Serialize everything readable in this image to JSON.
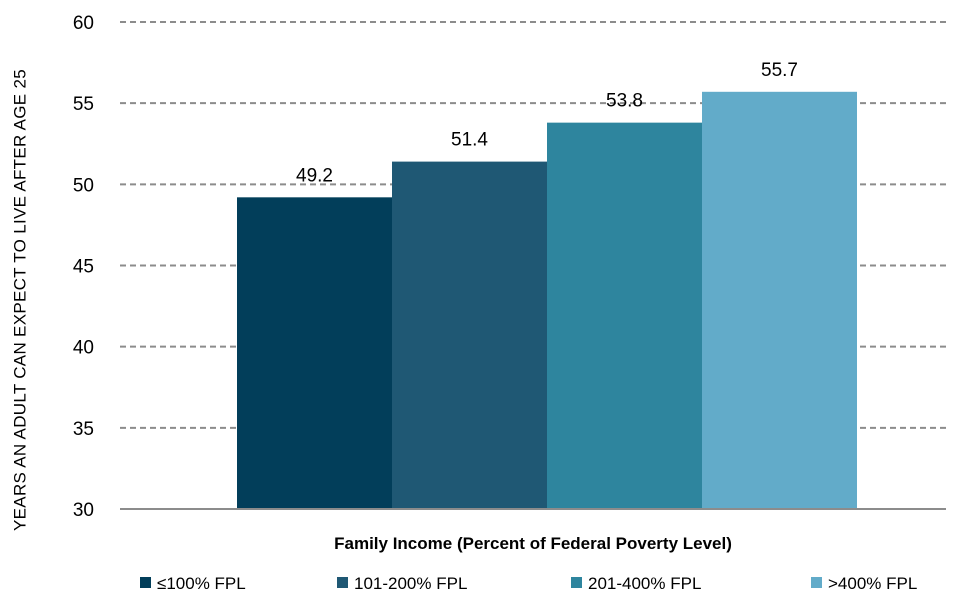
{
  "chart_data": {
    "type": "bar",
    "title": "",
    "xlabel": "Family Income (Percent of Federal Poverty Level)",
    "ylabel": "YEARS AN ADULT CAN EXPECT TO LIVE AFTER AGE 25",
    "ylim": [
      30,
      60
    ],
    "yticks": [
      30,
      35,
      40,
      45,
      50,
      55,
      60
    ],
    "grid": true,
    "legend_position": "bottom",
    "series": [
      {
        "name": "≤100% FPL",
        "values": [
          49.2
        ],
        "color": "#023E5A"
      },
      {
        "name": "101-200% FPL",
        "values": [
          51.4
        ],
        "color": "#1F5874"
      },
      {
        "name": "201-400% FPL",
        "values": [
          53.8
        ],
        "color": "#2E859E"
      },
      {
        "name": ">400% FPL",
        "values": [
          55.7
        ],
        "color": "#62ABC9"
      }
    ]
  }
}
